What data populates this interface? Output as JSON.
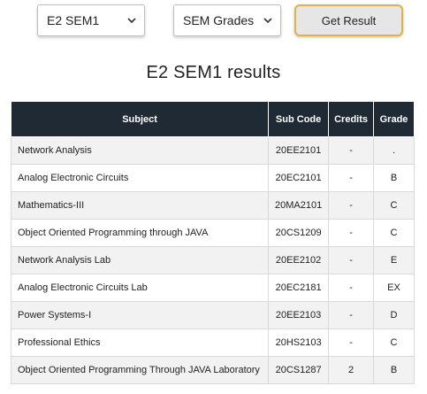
{
  "controls": {
    "year_select": "E2 SEM1",
    "type_select": "SEM Grades",
    "get_result_label": "Get Result"
  },
  "title": "E2 SEM1 results",
  "table": {
    "headers": [
      "Subject",
      "Sub Code",
      "Credits",
      "Grade"
    ],
    "rows": [
      {
        "subject": "Network Analysis",
        "code": "20EE2101",
        "credits": "-",
        "grade": "."
      },
      {
        "subject": "Analog Electronic Circuits",
        "code": "20EC2101",
        "credits": "-",
        "grade": "B"
      },
      {
        "subject": "Mathematics-III",
        "code": "20MA2101",
        "credits": "-",
        "grade": "C"
      },
      {
        "subject": "Object Oriented Programming through JAVA",
        "code": "20CS1209",
        "credits": "-",
        "grade": "C"
      },
      {
        "subject": "Network Analysis Lab",
        "code": "20EE2102",
        "credits": "-",
        "grade": "E"
      },
      {
        "subject": "Analog Electronic Circuits Lab",
        "code": "20EC2181",
        "credits": "-",
        "grade": "EX"
      },
      {
        "subject": "Power Systems-I",
        "code": "20EE2103",
        "credits": "-",
        "grade": "D"
      },
      {
        "subject": "Professional Ethics",
        "code": "20HS2103",
        "credits": "-",
        "grade": "C"
      },
      {
        "subject": "Object Oriented Programming Through JAVA Laboratory",
        "code": "20CS1287",
        "credits": "2",
        "grade": "B"
      }
    ]
  }
}
